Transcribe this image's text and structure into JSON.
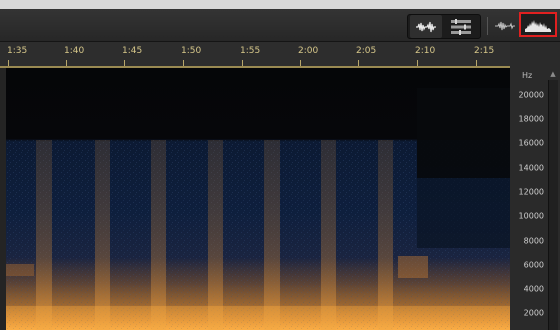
{
  "toolbar": {
    "buttons": [
      {
        "name": "waveform-stereo-view",
        "icon": "stereo-waveform-icon"
      },
      {
        "name": "multitrack-view",
        "icon": "multitrack-icon"
      },
      {
        "name": "waveform-view",
        "icon": "waveform-icon"
      },
      {
        "name": "spectral-view",
        "icon": "spectrum-icon",
        "active": true
      }
    ],
    "highlight_color": "#e02020"
  },
  "timeline": {
    "ticks": [
      "1:35",
      "1:40",
      "1:45",
      "1:50",
      "1:55",
      "2:00",
      "2:05",
      "2:10",
      "2:15"
    ]
  },
  "frequency_axis": {
    "unit": "Hz",
    "labels": [
      "20000",
      "18000",
      "16000",
      "14000",
      "12000",
      "10000",
      "8000",
      "6000",
      "4000",
      "2000"
    ]
  },
  "colors": {
    "timeline_text": "#d6c78a",
    "spectrum_low": "#0b1a33",
    "spectrum_high": "#f0a040"
  }
}
